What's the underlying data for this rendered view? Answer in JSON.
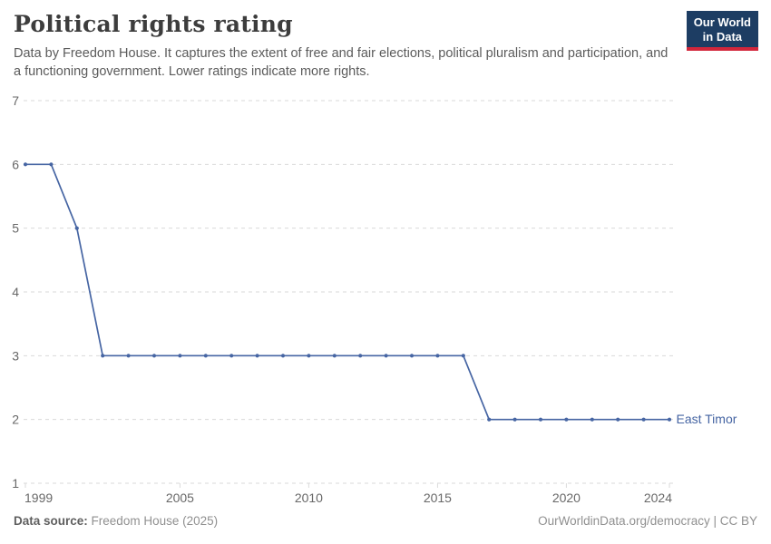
{
  "header": {
    "title": "Political rights rating",
    "subtitle": "Data by Freedom House. It captures the extent of free and fair elections, political pluralism and participation, and a functioning government. Lower ratings indicate more rights.",
    "logo": {
      "line1": "Our World",
      "line2": "in Data"
    }
  },
  "chart_data": {
    "type": "line",
    "title": "Political rights rating",
    "xlabel": "",
    "ylabel": "",
    "xlim": [
      1999,
      2024
    ],
    "ylim": [
      1,
      7
    ],
    "x_ticks": [
      1999,
      2005,
      2010,
      2015,
      2020,
      2024
    ],
    "y_ticks": [
      1,
      2,
      3,
      4,
      5,
      6,
      7
    ],
    "grid": "horizontal-dashed",
    "legend_position": "end-of-line-label",
    "series": [
      {
        "name": "East Timor",
        "color": "#4665a3",
        "x": [
          1999,
          2000,
          2001,
          2002,
          2003,
          2004,
          2005,
          2006,
          2007,
          2008,
          2009,
          2010,
          2011,
          2012,
          2013,
          2014,
          2015,
          2016,
          2017,
          2018,
          2019,
          2020,
          2021,
          2022,
          2023,
          2024
        ],
        "values": [
          6,
          6,
          5,
          3,
          3,
          3,
          3,
          3,
          3,
          3,
          3,
          3,
          3,
          3,
          3,
          3,
          3,
          3,
          2,
          2,
          2,
          2,
          2,
          2,
          2,
          2
        ]
      }
    ]
  },
  "footer": {
    "source_label": "Data source:",
    "source_value": "Freedom House (2025)",
    "link_text": "OurWorldinData.org/democracy | CC BY"
  },
  "colors": {
    "line": "#4665a3",
    "grid": "#dadada",
    "axis_text": "#686868",
    "title_text": "#3d3d3d",
    "subtitle_text": "#5b5b5b",
    "footer_text": "#909090",
    "logo_bg": "#1d3d63",
    "logo_accent": "#d2263b"
  }
}
